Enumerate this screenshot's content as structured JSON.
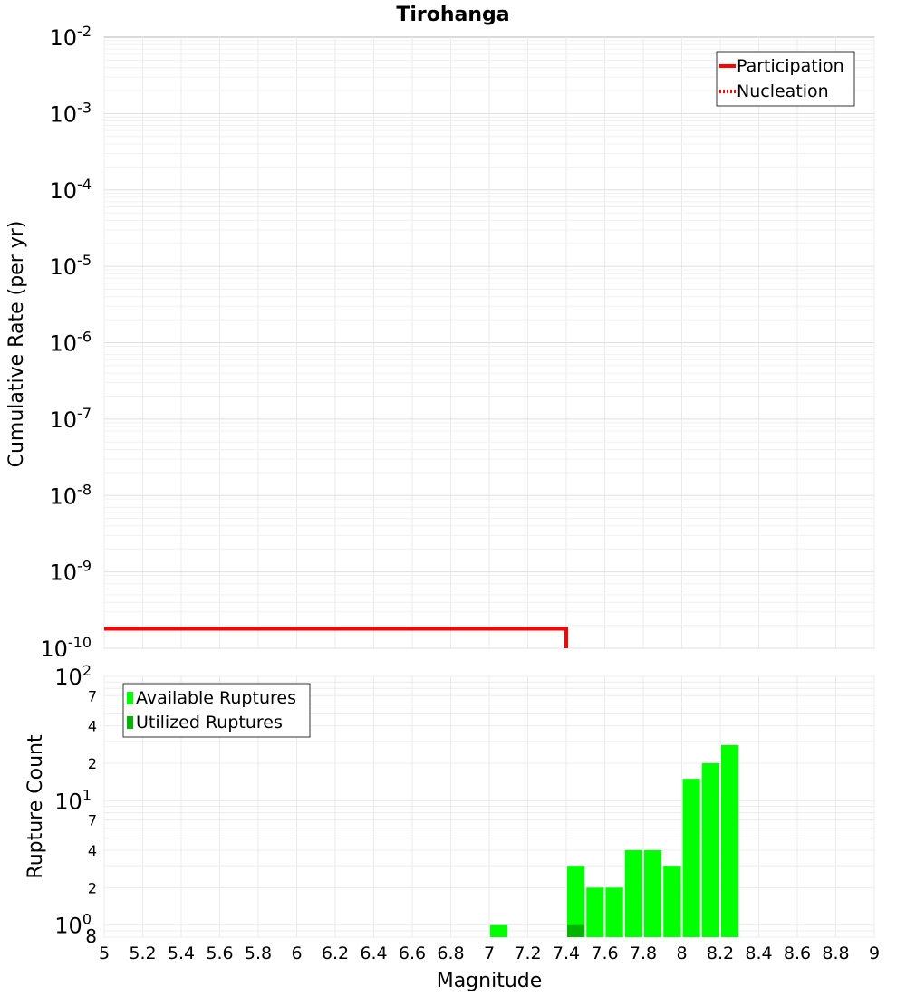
{
  "chart_data": {
    "title": "Tirohanga",
    "xlabel": "Magnitude",
    "xlim": [
      5,
      9
    ],
    "xticks": [
      "5",
      "5.2",
      "5.4",
      "5.6",
      "5.8",
      "6",
      "6.2",
      "6.4",
      "6.6",
      "6.8",
      "7",
      "7.2",
      "7.4",
      "7.6",
      "7.8",
      "8",
      "8.2",
      "8.4",
      "8.6",
      "8.8",
      "9"
    ],
    "panels": [
      {
        "type": "line",
        "ylabel": "Cumulative Rate (per yr)",
        "yscale": "log",
        "ylim": [
          1e-10,
          0.01
        ],
        "yticks": [
          {
            "base": "10",
            "exp": "-2"
          },
          {
            "base": "10",
            "exp": "-3"
          },
          {
            "base": "10",
            "exp": "-4"
          },
          {
            "base": "10",
            "exp": "-5"
          },
          {
            "base": "10",
            "exp": "-6"
          },
          {
            "base": "10",
            "exp": "-7"
          },
          {
            "base": "10",
            "exp": "-8"
          },
          {
            "base": "10",
            "exp": "-9"
          },
          {
            "base": "10",
            "exp": "-10"
          }
        ],
        "legend": {
          "position": "top-right",
          "entries": [
            {
              "name": "Participation",
              "style": "solid",
              "color": "#ff0000"
            },
            {
              "name": "Nucleation",
              "style": "dotted",
              "color": "#ff0000"
            }
          ]
        },
        "series": [
          {
            "name": "Participation",
            "color": "#ff0000",
            "x": [
              5.0,
              7.4,
              7.4
            ],
            "y": [
              1.8e-10,
              1.8e-10,
              1e-10
            ]
          }
        ]
      },
      {
        "type": "bar",
        "ylabel": "Rupture Count",
        "yscale": "log",
        "ylim": [
          0.8,
          100
        ],
        "yticks": [
          {
            "value": 100,
            "base": "10",
            "exp": "2",
            "major": true
          },
          {
            "value": 70,
            "label": "7"
          },
          {
            "value": 40,
            "label": "4"
          },
          {
            "value": 20,
            "label": "2"
          },
          {
            "value": 10,
            "base": "10",
            "exp": "1",
            "major": true
          },
          {
            "value": 7,
            "label": "7"
          },
          {
            "value": 4,
            "label": "4"
          },
          {
            "value": 2,
            "label": "2"
          },
          {
            "value": 1,
            "base": "10",
            "exp": "0",
            "major": true
          },
          {
            "value": 0.8,
            "label": "8"
          }
        ],
        "legend": {
          "position": "top-left",
          "entries": [
            {
              "name": "Available Ruptures",
              "color": "#00ff00"
            },
            {
              "name": "Utilized Ruptures",
              "color": "#00b400"
            }
          ]
        },
        "bin_width": 0.1,
        "series": [
          {
            "name": "Available Ruptures",
            "color": "#00ff00",
            "x": [
              7.05,
              7.45,
              7.55,
              7.65,
              7.75,
              7.85,
              7.95,
              8.05,
              8.15,
              8.25
            ],
            "values": [
              1,
              3,
              2,
              2,
              4,
              4,
              3,
              15,
              20,
              28
            ]
          },
          {
            "name": "Utilized Ruptures",
            "color": "#00b400",
            "x": [
              7.45
            ],
            "values": [
              1
            ]
          }
        ]
      }
    ]
  }
}
